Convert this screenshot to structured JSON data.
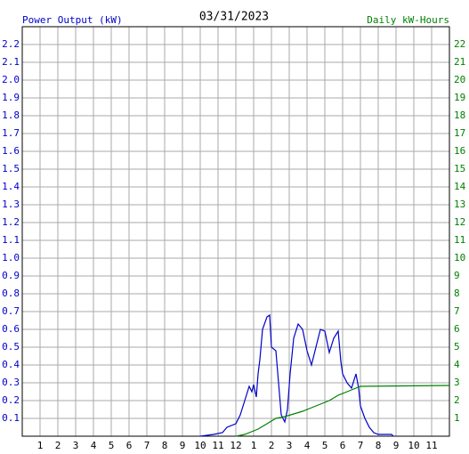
{
  "chart_data": {
    "type": "line",
    "title": "03/31/2023",
    "y_label": "Power Output (kW)",
    "y2_label": "Daily kW-Hours",
    "xlim": [
      0,
      24
    ],
    "xticks": [
      1,
      2,
      3,
      4,
      5,
      6,
      7,
      8,
      9,
      10,
      11,
      {
        "value": 12,
        "label": "12"
      },
      {
        "value": 13,
        "label": "1"
      },
      {
        "value": 14,
        "label": "2"
      },
      {
        "value": 15,
        "label": "3"
      },
      {
        "value": 16,
        "label": "4"
      },
      {
        "value": 17,
        "label": "5"
      },
      {
        "value": 18,
        "label": "6"
      },
      {
        "value": 19,
        "label": "7"
      },
      {
        "value": 20,
        "label": "8"
      },
      {
        "value": 21,
        "label": "9"
      },
      {
        "value": 22,
        "label": "10"
      },
      {
        "value": 23,
        "label": "11"
      }
    ],
    "ylim": [
      0,
      2.3
    ],
    "yticks": [
      0.1,
      0.2,
      0.3,
      0.4,
      0.5,
      0.6,
      0.7,
      0.8,
      0.9,
      {
        "value": 1,
        "label": "1.0"
      },
      1.1,
      1.2,
      1.3,
      1.4,
      1.5,
      1.6,
      1.7,
      1.8,
      1.9,
      {
        "value": 2,
        "label": "2.0"
      },
      2.1,
      2.2
    ],
    "y2lim": [
      0,
      23
    ],
    "y2ticks": [
      1,
      2,
      3,
      4,
      5,
      6,
      7,
      8,
      9,
      10,
      11,
      12,
      13,
      14,
      15,
      16,
      17,
      18,
      19,
      20,
      21,
      22
    ],
    "grid": true,
    "series": [
      {
        "name": "Power Output (kW)",
        "color": "#0000cc",
        "x": [
          10,
          10.75,
          11.25,
          11.5,
          12,
          12.25,
          12.5,
          12.75,
          12.9,
          13,
          13.15,
          13.25,
          13.35,
          13.5,
          13.75,
          13.9,
          14,
          14.25,
          14.4,
          14.55,
          14.75,
          14.9,
          15.05,
          15.25,
          15.5,
          15.75,
          16,
          16.25,
          16.5,
          16.75,
          17,
          17.25,
          17.5,
          17.75,
          17.9,
          18,
          18.25,
          18.5,
          18.75,
          18.9,
          19,
          19.25,
          19.5,
          19.75,
          20,
          20.75,
          20.85
        ],
        "values": [
          0,
          0.01,
          0.02,
          0.05,
          0.07,
          0.12,
          0.2,
          0.28,
          0.25,
          0.29,
          0.22,
          0.35,
          0.43,
          0.6,
          0.67,
          0.68,
          0.5,
          0.48,
          0.3,
          0.12,
          0.08,
          0.15,
          0.35,
          0.55,
          0.63,
          0.6,
          0.48,
          0.4,
          0.5,
          0.6,
          0.59,
          0.47,
          0.55,
          0.59,
          0.42,
          0.35,
          0.3,
          0.27,
          0.35,
          0.27,
          0.17,
          0.1,
          0.05,
          0.02,
          0.01,
          0.01,
          0
        ]
      },
      {
        "name": "Daily kW-Hours",
        "color": "#008000",
        "axis": "y2",
        "x": [
          12,
          12.5,
          13,
          13.25,
          13.75,
          14.25,
          14.75,
          15.25,
          15.75,
          16.25,
          16.75,
          17.25,
          17.75,
          18.25,
          18.5,
          19,
          24
        ],
        "values": [
          0,
          0.1,
          0.3,
          0.4,
          0.7,
          1.0,
          1.1,
          1.25,
          1.4,
          1.6,
          1.8,
          2.0,
          2.3,
          2.5,
          2.6,
          2.8,
          2.85
        ]
      }
    ]
  }
}
